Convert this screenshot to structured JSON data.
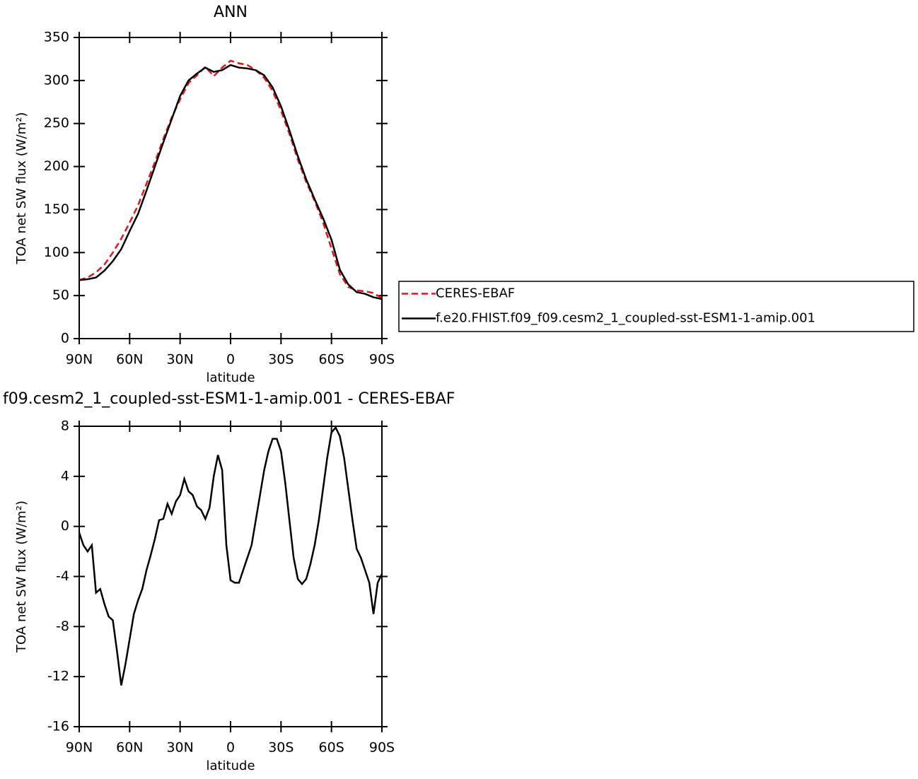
{
  "chart_data": [
    {
      "type": "line",
      "title": "ANN",
      "xlabel": "latitude",
      "ylabel": "TOA net SW flux (W/m²)",
      "xlim": [
        90,
        -90
      ],
      "ylim": [
        0,
        350
      ],
      "xticks": [
        {
          "value": 90,
          "label": "90N"
        },
        {
          "value": 60,
          "label": "60N"
        },
        {
          "value": 30,
          "label": "30N"
        },
        0,
        {
          "value": -30,
          "label": "30S"
        },
        {
          "value": -60,
          "label": "60S"
        },
        {
          "value": -90,
          "label": "90S"
        }
      ],
      "yticks": [
        0,
        50,
        100,
        150,
        200,
        250,
        300,
        350
      ],
      "legend": "right",
      "x": [
        90,
        85,
        80,
        75,
        70,
        65,
        60,
        55,
        50,
        45,
        40,
        35,
        30,
        25,
        20,
        15,
        10,
        5,
        0,
        -5,
        -10,
        -15,
        -20,
        -25,
        -30,
        -35,
        -40,
        -45,
        -50,
        -55,
        -60,
        -65,
        -70,
        -75,
        -80,
        -85,
        -90
      ],
      "series": [
        {
          "name": "CERES-EBAF",
          "color": "#e8141c",
          "style": "dashed",
          "values": [
            68,
            71,
            77,
            86,
            100,
            116,
            135,
            155,
            180,
            205,
            232,
            257,
            278,
            297,
            306,
            316,
            305,
            315,
            323,
            320,
            318,
            312,
            303,
            288,
            265,
            238,
            208,
            182,
            160,
            135,
            105,
            75,
            60,
            56,
            55,
            53,
            47
          ]
        },
        {
          "name": "f.e20.FHIST.f09_f09.cesm2_1_coupled-sst-ESM1-1-amip.001",
          "color": "#000000",
          "style": "solid",
          "values": [
            68,
            69,
            71,
            79,
            90,
            104,
            125,
            145,
            172,
            200,
            228,
            255,
            282,
            300,
            308,
            315,
            310,
            312,
            318,
            315,
            314,
            312,
            306,
            292,
            270,
            242,
            212,
            185,
            162,
            140,
            115,
            80,
            63,
            54,
            52,
            48,
            46
          ]
        }
      ]
    },
    {
      "type": "line",
      "title": "f09.cesm2_1_coupled-sst-ESM1-1-amip.001 - CERES-EBAF",
      "xlabel": "latitude",
      "ylabel": "TOA net SW flux (W/m²)",
      "xlim": [
        90,
        -90
      ],
      "ylim": [
        -16,
        8
      ],
      "xticks": [
        {
          "value": 90,
          "label": "90N"
        },
        {
          "value": 60,
          "label": "60N"
        },
        {
          "value": 30,
          "label": "30N"
        },
        0,
        {
          "value": -30,
          "label": "30S"
        },
        {
          "value": -60,
          "label": "60S"
        },
        {
          "value": -90,
          "label": "90S"
        }
      ],
      "yticks": [
        -16,
        -12,
        -8,
        -4,
        0,
        4,
        8
      ],
      "x": [
        90,
        87.5,
        85,
        82.5,
        80,
        77.5,
        75,
        72.5,
        70,
        67.5,
        65,
        62.5,
        60,
        57.5,
        55,
        52.5,
        50,
        47.5,
        45,
        42.5,
        40,
        37.5,
        35,
        32.5,
        30,
        27.5,
        25,
        22.5,
        20,
        17.5,
        15,
        12.5,
        10,
        7.5,
        5,
        2.5,
        0,
        -2.5,
        -5,
        -7.5,
        -10,
        -12.5,
        -15,
        -17.5,
        -20,
        -22.5,
        -25,
        -27.5,
        -30,
        -32.5,
        -35,
        -37.5,
        -40,
        -42.5,
        -45,
        -47.5,
        -50,
        -52.5,
        -55,
        -57.5,
        -60,
        -62.5,
        -65,
        -67.5,
        -70,
        -72.5,
        -75,
        -77.5,
        -80,
        -82.5,
        -85,
        -87.5,
        -90
      ],
      "series": [
        {
          "color": "#000000",
          "style": "solid",
          "values": [
            -0.5,
            -1.5,
            -2.0,
            -1.5,
            -5.3,
            -5.0,
            -6.2,
            -7.2,
            -7.5,
            -10,
            -12.7,
            -11,
            -9,
            -7,
            -5.9,
            -5.0,
            -3.5,
            -2.3,
            -1.0,
            0.5,
            0.6,
            1.8,
            1.0,
            2.0,
            2.5,
            3.8,
            2.8,
            2.5,
            1.6,
            1.3,
            0.6,
            1.5,
            4.0,
            5.7,
            4.5,
            -1.5,
            -4.3,
            -4.5,
            -4.5,
            -3.5,
            -2.5,
            -1.5,
            0.5,
            2.5,
            4.5,
            6.0,
            7.0,
            7.0,
            6.0,
            3.5,
            0.5,
            -2.5,
            -4.2,
            -4.6,
            -4.2,
            -3.0,
            -1.5,
            0.5,
            3.0,
            5.5,
            7.5,
            7.9,
            7.2,
            5.5,
            3.0,
            0.5,
            -1.8,
            -2.5,
            -3.5,
            -4.5,
            -7.0,
            -4.5,
            -3.8
          ]
        }
      ]
    }
  ]
}
